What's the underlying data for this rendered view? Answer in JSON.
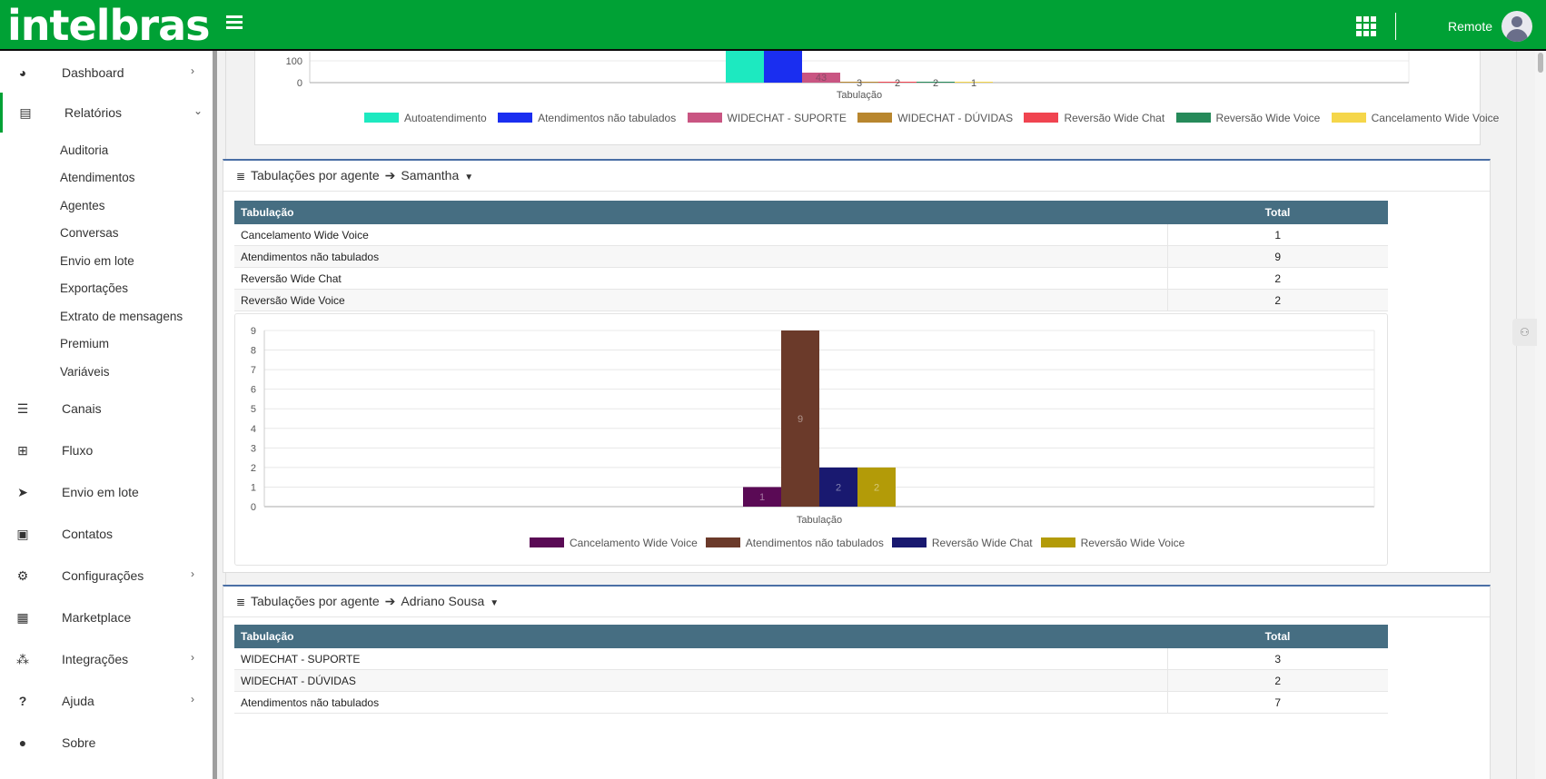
{
  "header": {
    "logo": "intelbras",
    "user": "Remote"
  },
  "sidebar": {
    "items": [
      {
        "label": "Dashboard",
        "icon": "gauge-icon",
        "chevron": "›"
      },
      {
        "label": "Relatórios",
        "icon": "book-icon",
        "chevron": "⌄"
      },
      {
        "label": "Canais",
        "icon": "list-icon",
        "chevron": ""
      },
      {
        "label": "Fluxo",
        "icon": "sitemap-icon",
        "chevron": ""
      },
      {
        "label": "Envio em lote",
        "icon": "paper-plane-icon",
        "chevron": ""
      },
      {
        "label": "Contatos",
        "icon": "address-book-icon",
        "chevron": ""
      },
      {
        "label": "Configurações",
        "icon": "gears-icon",
        "chevron": "›"
      },
      {
        "label": "Marketplace",
        "icon": "store-icon",
        "chevron": ""
      },
      {
        "label": "Integrações",
        "icon": "integrations-icon",
        "chevron": "›"
      },
      {
        "label": "Ajuda",
        "icon": "question-icon",
        "chevron": "›"
      },
      {
        "label": "Sobre",
        "icon": "info-icon",
        "chevron": ""
      }
    ],
    "sub_items": [
      "Auditoria",
      "Atendimentos",
      "Agentes",
      "Conversas",
      "Envio em lote",
      "Exportações",
      "Extrato de mensagens",
      "Premium",
      "Variáveis"
    ]
  },
  "top_chart": {
    "y_ticks": [
      "100",
      "0"
    ],
    "xlabel": "Tabulação",
    "labels": [
      "43",
      "3",
      "2",
      "2",
      "1"
    ],
    "legend": [
      {
        "name": "Autoatendimento",
        "color": "#1de9c0"
      },
      {
        "name": "Atendimentos não tabulados",
        "color": "#1a2ef0"
      },
      {
        "name": "WIDECHAT - SUPORTE",
        "color": "#c95582"
      },
      {
        "name": "WIDECHAT - DÚVIDAS",
        "color": "#b8862e"
      },
      {
        "name": "Reversão Wide Chat",
        "color": "#f04450"
      },
      {
        "name": "Reversão Wide Voice",
        "color": "#268a5a"
      },
      {
        "name": "Cancelamento Wide Voice",
        "color": "#f5d64a"
      }
    ]
  },
  "samantha": {
    "title": "Tabulações por agente",
    "agent": "Samantha",
    "table": {
      "headers": [
        "Tabulação",
        "Total"
      ],
      "rows": [
        [
          "Cancelamento Wide Voice",
          "1"
        ],
        [
          "Atendimentos não tabulados",
          "9"
        ],
        [
          "Reversão Wide Chat",
          "2"
        ],
        [
          "Reversão Wide Voice",
          "2"
        ]
      ]
    }
  },
  "adriano": {
    "title": "Tabulações por agente",
    "agent": "Adriano Sousa",
    "table": {
      "headers": [
        "Tabulação",
        "Total"
      ],
      "rows": [
        [
          "WIDECHAT - SUPORTE",
          "3"
        ],
        [
          "WIDECHAT - DÚVIDAS",
          "2"
        ],
        [
          "Atendimentos não tabulados",
          "7"
        ]
      ]
    }
  },
  "chart_data": {
    "type": "bar",
    "categories": [
      "Tabulação"
    ],
    "xlabel": "Tabulação",
    "ylim": [
      0,
      9
    ],
    "y_ticks": [
      0,
      1,
      2,
      3,
      4,
      5,
      6,
      7,
      8,
      9
    ],
    "grid": true,
    "legend": "bottom",
    "series": [
      {
        "name": "Cancelamento Wide Voice",
        "values": [
          1
        ],
        "color": "#5a0a55"
      },
      {
        "name": "Atendimentos não tabulados",
        "values": [
          9
        ],
        "color": "#6b3a2a"
      },
      {
        "name": "Reversão Wide Chat",
        "values": [
          2
        ],
        "color": "#191970"
      },
      {
        "name": "Reversão Wide Voice",
        "values": [
          2
        ],
        "color": "#b39b08"
      }
    ]
  }
}
